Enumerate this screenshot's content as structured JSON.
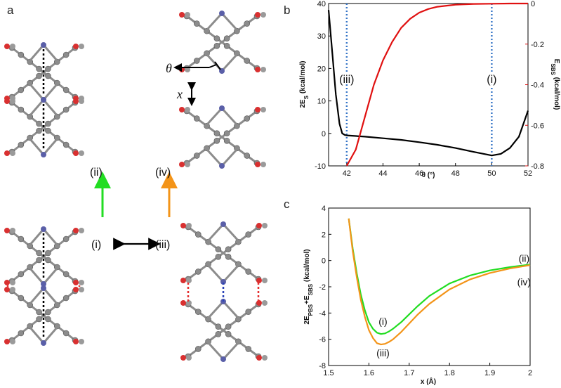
{
  "figure": {
    "panel_a": {
      "letter": "a",
      "states": [
        "(ii)",
        "(i)",
        "(iii)",
        "(iv)"
      ],
      "theta_symbol": "θ",
      "x_symbol": "x",
      "colors": {
        "green_arrow": "#22dd22",
        "orange_arrow": "#f39419",
        "black_arrow": "#000000",
        "atom_c": "#8c8c8c",
        "atom_n": "#5a5fa8",
        "atom_o": "#d93030"
      }
    },
    "panel_b": {
      "letter": "b"
    },
    "panel_c": {
      "letter": "c"
    }
  },
  "chart_data": [
    {
      "type": "line",
      "xlabel": "θ (°)",
      "ylabel_left": "2E_S (kcal/mol)",
      "ylabel_right": "E_SBS (kcal/mol)",
      "xlim": [
        41,
        52
      ],
      "ylim_left": [
        -10,
        40
      ],
      "ylim_right": [
        -0.8,
        0
      ],
      "x_ticks": [
        42,
        44,
        46,
        48,
        50,
        52
      ],
      "y_left_ticks": [
        -10,
        0,
        10,
        20,
        30,
        40
      ],
      "y_right_ticks": [
        -0.8,
        -0.6,
        -0.4,
        -0.2,
        0
      ],
      "colors": {
        "left": "#000000",
        "right": "#e01010",
        "markers": "#3a78c8"
      },
      "series": [
        {
          "axis": "left",
          "x": [
            41.0,
            41.2,
            41.4,
            41.6,
            41.75,
            41.9,
            42.0,
            43.0,
            44.0,
            45.0,
            46.0,
            47.0,
            48.0,
            49.0,
            50.0,
            50.5,
            51.0,
            51.5,
            52.0
          ],
          "values": [
            38.0,
            25.0,
            12.0,
            3.0,
            0.0,
            -0.5,
            -0.6,
            -1.0,
            -1.5,
            -2.0,
            -2.7,
            -3.5,
            -4.5,
            -5.7,
            -6.8,
            -6.3,
            -4.5,
            -1.0,
            7.0
          ]
        },
        {
          "axis": "right",
          "x": [
            42.0,
            42.5,
            43.0,
            43.5,
            44.0,
            44.5,
            45.0,
            45.5,
            46.0,
            46.5,
            47.0,
            48.0,
            49.0,
            50.0,
            51.0,
            52.0
          ],
          "values": [
            -0.8,
            -0.72,
            -0.56,
            -0.4,
            -0.28,
            -0.19,
            -0.12,
            -0.075,
            -0.045,
            -0.027,
            -0.016,
            -0.006,
            -0.002,
            -0.001,
            0,
            0
          ]
        }
      ],
      "markers": [
        {
          "x": 42,
          "label": "(iii)"
        },
        {
          "x": 50,
          "label": "(i)"
        }
      ]
    },
    {
      "type": "line",
      "xlabel": "x (Å)",
      "ylabel": "2E_PBS+E_SBS (kcal/mol)",
      "xlim": [
        1.5,
        2.0
      ],
      "ylim": [
        -8,
        4
      ],
      "x_ticks": [
        1.5,
        1.6,
        1.7,
        1.8,
        1.9,
        2.0
      ],
      "y_ticks": [
        -8,
        -6,
        -4,
        -2,
        0,
        2,
        4
      ],
      "series": [
        {
          "color": "#22dd22",
          "x": [
            1.55,
            1.56,
            1.57,
            1.58,
            1.59,
            1.6,
            1.61,
            1.62,
            1.63,
            1.64,
            1.65,
            1.66,
            1.68,
            1.7,
            1.72,
            1.75,
            1.8,
            1.85,
            1.9,
            1.95,
            2.0
          ],
          "values": [
            3.2,
            0.9,
            -1.0,
            -2.6,
            -3.8,
            -4.7,
            -5.2,
            -5.5,
            -5.6,
            -5.55,
            -5.4,
            -5.2,
            -4.7,
            -4.1,
            -3.5,
            -2.7,
            -1.75,
            -1.15,
            -0.75,
            -0.5,
            -0.3
          ]
        },
        {
          "color": "#f39419",
          "x": [
            1.55,
            1.56,
            1.57,
            1.58,
            1.59,
            1.6,
            1.61,
            1.62,
            1.63,
            1.64,
            1.65,
            1.66,
            1.68,
            1.7,
            1.72,
            1.75,
            1.8,
            1.85,
            1.9,
            1.95,
            2.0
          ],
          "values": [
            3.2,
            0.7,
            -1.3,
            -3.0,
            -4.3,
            -5.3,
            -5.9,
            -6.3,
            -6.4,
            -6.35,
            -6.2,
            -6.0,
            -5.45,
            -4.8,
            -4.15,
            -3.3,
            -2.2,
            -1.45,
            -0.95,
            -0.6,
            -0.35
          ]
        }
      ],
      "annotations": [
        {
          "label": "(i)",
          "x": 1.635,
          "y": -4.9
        },
        {
          "label": "(iii)",
          "x": 1.635,
          "y": -7.3
        },
        {
          "label": "(ii)",
          "x": 1.985,
          "y": -0.1
        },
        {
          "label": "(iv)",
          "x": 1.985,
          "y": -1.9
        }
      ]
    }
  ]
}
